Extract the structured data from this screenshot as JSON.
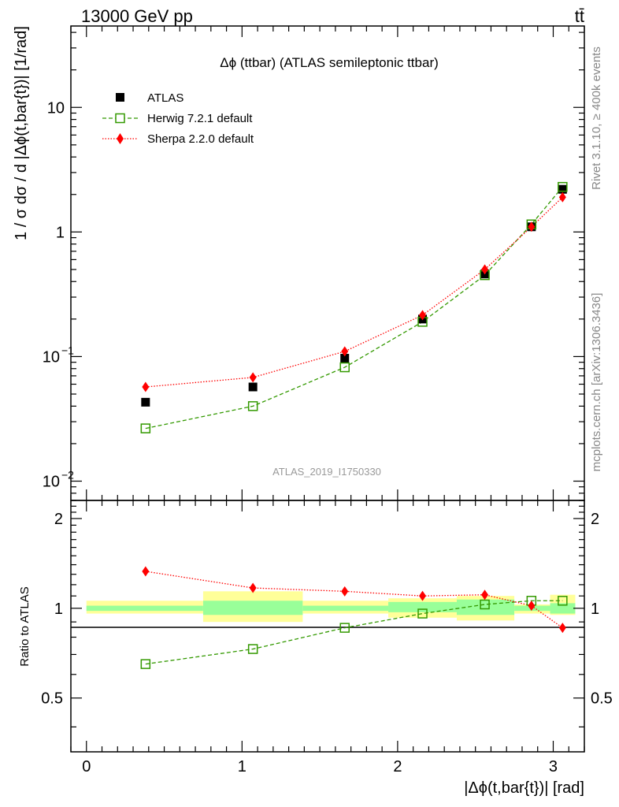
{
  "header": {
    "energy_label": "13000 GeV pp",
    "process_label": "tt̄",
    "plot_title": "Δϕ (ttbar) (ATLAS semileptonic ttbar)",
    "analysis_id": "ATLAS_2019_I1750330",
    "rivet_label": "Rivet 3.1.10, ≥ 400k events",
    "site_label": "mcplots.cern.ch [arXiv:1306.3436]"
  },
  "axes": {
    "main_ylabel": "1 / σ dσ / d |Δϕ(t,bar{t})| [1/rad]",
    "ratio_ylabel": "Ratio to ATLAS",
    "xlabel": "|Δϕ(t,bar{t})| [rad]",
    "xlim": [
      -0.1,
      3.2
    ],
    "main_ylim": [
      0.007,
      45
    ],
    "main_yscale": "log",
    "ratio_ylim": [
      0.33,
      2.3
    ],
    "ratio_yscale": "log",
    "x_ticks": [
      "0",
      "1",
      "2",
      "3"
    ],
    "main_y_ticks": [
      {
        "base": "10",
        "exp": "−2"
      },
      {
        "base": "10",
        "exp": "−1"
      },
      {
        "base": "1",
        "exp": ""
      },
      {
        "base": "10",
        "exp": ""
      }
    ],
    "ratio_y_ticks": [
      "0.5",
      "1",
      "2"
    ]
  },
  "legend": {
    "placement": "top-left",
    "entries": [
      "ATLAS",
      "Herwig 7.2.1 default",
      "Sherpa 2.2.0 default"
    ]
  },
  "chart_data": {
    "type": "scatter",
    "bins": [
      {
        "lo": 0.0,
        "hi": 0.75,
        "x": 0.38
      },
      {
        "lo": 0.75,
        "hi": 1.39,
        "x": 1.07
      },
      {
        "lo": 1.39,
        "hi": 1.94,
        "x": 1.66
      },
      {
        "lo": 1.94,
        "hi": 2.38,
        "x": 2.16
      },
      {
        "lo": 2.38,
        "hi": 2.75,
        "x": 2.56
      },
      {
        "lo": 2.75,
        "hi": 2.98,
        "x": 2.86
      },
      {
        "lo": 2.98,
        "hi": 3.1416,
        "x": 3.06
      }
    ],
    "series": [
      {
        "name": "ATLAS",
        "color": "#000000",
        "marker": "filled-square",
        "values": [
          0.043,
          0.057,
          0.097,
          0.2,
          0.46,
          1.1,
          2.2
        ]
      },
      {
        "name": "Herwig 7.2.1 default",
        "color": "#339900",
        "marker": "open-square",
        "line": "dashed",
        "values": [
          0.0265,
          0.04,
          0.082,
          0.19,
          0.45,
          1.15,
          2.3
        ]
      },
      {
        "name": "Sherpa 2.2.0 default",
        "color": "#ff0000",
        "marker": "diamond",
        "line": "dotted",
        "values": [
          0.057,
          0.068,
          0.11,
          0.215,
          0.5,
          1.1,
          1.9
        ]
      }
    ],
    "ratio": {
      "Herwig 7.2.1 default": [
        0.65,
        0.73,
        0.86,
        0.96,
        1.03,
        1.06,
        1.06
      ],
      "Sherpa 2.2.0 default": [
        1.33,
        1.17,
        1.14,
        1.1,
        1.11,
        1.02,
        0.86
      ]
    },
    "uncertainty_bands": {
      "inner_color": "#99ff99",
      "outer_color": "#ffff99",
      "inner": [
        [
          0.98,
          1.02
        ],
        [
          0.95,
          1.06
        ],
        [
          0.98,
          1.02
        ],
        [
          0.97,
          1.05
        ],
        [
          0.95,
          1.07
        ],
        [
          0.98,
          1.02
        ],
        [
          0.96,
          1.04
        ]
      ],
      "outer": [
        [
          0.96,
          1.06
        ],
        [
          0.9,
          1.14
        ],
        [
          0.96,
          1.06
        ],
        [
          0.93,
          1.08
        ],
        [
          0.91,
          1.1
        ],
        [
          0.96,
          1.03
        ],
        [
          0.95,
          1.11
        ]
      ]
    }
  }
}
